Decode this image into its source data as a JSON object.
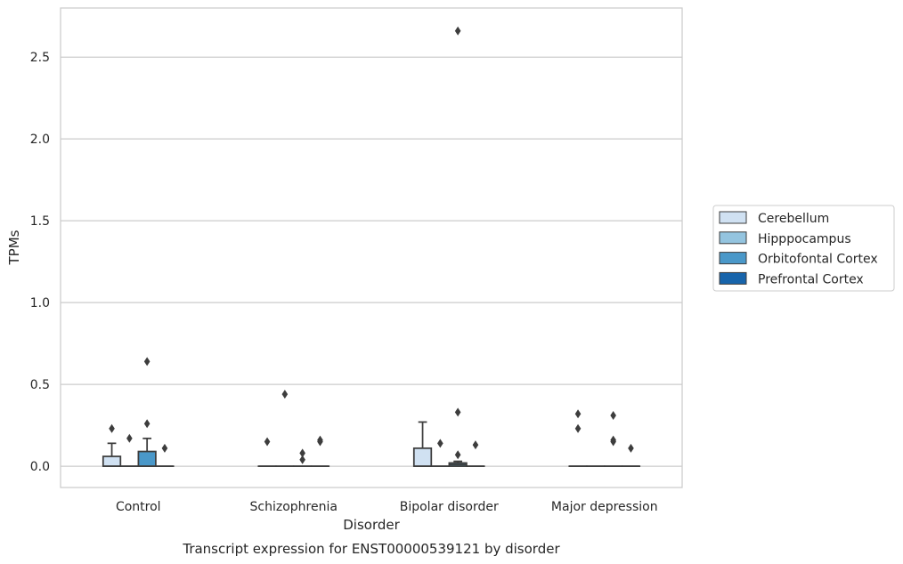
{
  "chart_data": {
    "type": "box",
    "title": "Transcript expression for ENST00000539121 by disorder",
    "xlabel": "Disorder",
    "ylabel": "TPMs",
    "ylim": [
      -0.13,
      2.8
    ],
    "yticks": [
      0.0,
      0.5,
      1.0,
      1.5,
      2.0,
      2.5
    ],
    "ytick_labels": [
      "0.0",
      "0.5",
      "1.0",
      "1.5",
      "2.0",
      "2.5"
    ],
    "grid": "horizontal",
    "legend_position": "right",
    "categories": [
      "Control",
      "Schizophrenia",
      "Bipolar disorder",
      "Major depression"
    ],
    "series": [
      {
        "name": "Cerebellum",
        "color": "#d0e1f2",
        "boxes": [
          {
            "q1": 0.0,
            "median": 0.0,
            "q3": 0.06,
            "whisker_low": 0.0,
            "whisker_high": 0.14,
            "outliers": [
              0.23
            ]
          },
          {
            "q1": 0.0,
            "median": 0.0,
            "q3": 0.0,
            "whisker_low": 0.0,
            "whisker_high": 0.0,
            "outliers": [
              0.15
            ]
          },
          {
            "q1": 0.0,
            "median": 0.0,
            "q3": 0.11,
            "whisker_low": 0.0,
            "whisker_high": 0.27,
            "outliers": []
          },
          {
            "q1": 0.0,
            "median": 0.0,
            "q3": 0.0,
            "whisker_low": 0.0,
            "whisker_high": 0.0,
            "outliers": [
              0.23,
              0.32
            ]
          }
        ]
      },
      {
        "name": "Hipppocampus",
        "color": "#94c4df",
        "boxes": [
          {
            "q1": 0.0,
            "median": 0.0,
            "q3": 0.0,
            "whisker_low": 0.0,
            "whisker_high": 0.0,
            "outliers": [
              0.17
            ]
          },
          {
            "q1": 0.0,
            "median": 0.0,
            "q3": 0.0,
            "whisker_low": 0.0,
            "whisker_high": 0.0,
            "outliers": [
              0.44
            ]
          },
          {
            "q1": 0.0,
            "median": 0.0,
            "q3": 0.0,
            "whisker_low": 0.0,
            "whisker_high": 0.0,
            "outliers": [
              0.14
            ]
          },
          {
            "q1": 0.0,
            "median": 0.0,
            "q3": 0.0,
            "whisker_low": 0.0,
            "whisker_high": 0.0,
            "outliers": []
          }
        ]
      },
      {
        "name": "Orbitofontal Cortex",
        "color": "#4a98c9",
        "boxes": [
          {
            "q1": 0.0,
            "median": 0.0,
            "q3": 0.09,
            "whisker_low": 0.0,
            "whisker_high": 0.17,
            "outliers": [
              0.26,
              0.64
            ]
          },
          {
            "q1": 0.0,
            "median": 0.0,
            "q3": 0.0,
            "whisker_low": 0.0,
            "whisker_high": 0.0,
            "outliers": [
              0.04,
              0.08
            ]
          },
          {
            "q1": 0.0,
            "median": 0.01,
            "q3": 0.02,
            "whisker_low": 0.0,
            "whisker_high": 0.03,
            "outliers": [
              0.07,
              0.33,
              2.66
            ]
          },
          {
            "q1": 0.0,
            "median": 0.0,
            "q3": 0.0,
            "whisker_low": 0.0,
            "whisker_high": 0.0,
            "outliers": [
              0.15,
              0.16,
              0.31
            ]
          }
        ]
      },
      {
        "name": "Prefrontal Cortex",
        "color": "#1764ab",
        "boxes": [
          {
            "q1": 0.0,
            "median": 0.0,
            "q3": 0.0,
            "whisker_low": 0.0,
            "whisker_high": 0.0,
            "outliers": [
              0.11
            ]
          },
          {
            "q1": 0.0,
            "median": 0.0,
            "q3": 0.0,
            "whisker_low": 0.0,
            "whisker_high": 0.0,
            "outliers": [
              0.15,
              0.16
            ]
          },
          {
            "q1": 0.0,
            "median": 0.0,
            "q3": 0.0,
            "whisker_low": 0.0,
            "whisker_high": 0.0,
            "outliers": [
              0.13
            ]
          },
          {
            "q1": 0.0,
            "median": 0.0,
            "q3": 0.0,
            "whisker_low": 0.0,
            "whisker_high": 0.0,
            "outliers": [
              0.11
            ]
          }
        ]
      }
    ]
  }
}
